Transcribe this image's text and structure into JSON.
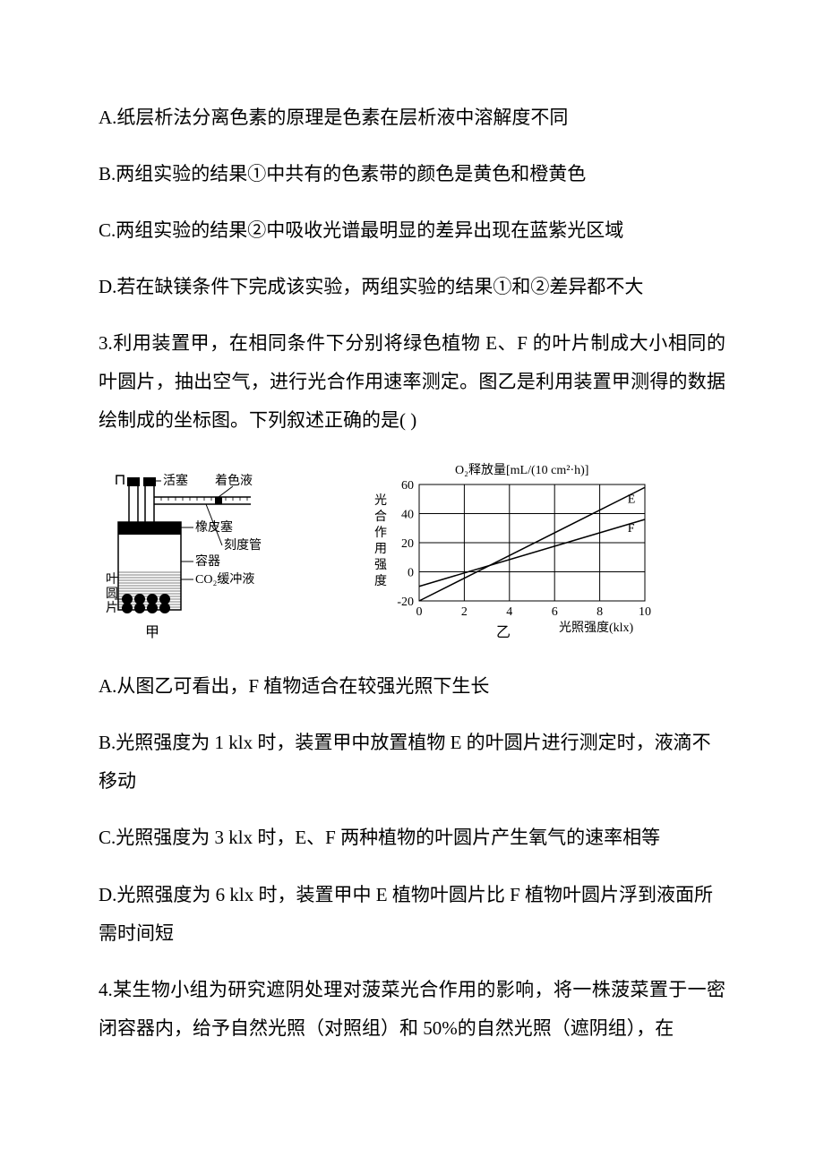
{
  "colors": {
    "text": "#000000",
    "bg": "#ffffff",
    "line": "#000000",
    "hatch": "#000000"
  },
  "q2_continuation": {
    "options": {
      "A": "A.纸层析法分离色素的原理是色素在层析液中溶解度不同",
      "B": "B.两组实验的结果①中共有的色素带的颜色是黄色和橙黄色",
      "C": "C.两组实验的结果②中吸收光谱最明显的差异出现在蓝紫光区域",
      "D": "D.若在缺镁条件下完成该实验，两组实验的结果①和②差异都不大"
    }
  },
  "q3": {
    "stem": "3.利用装置甲，在相同条件下分别将绿色植物 E、F 的叶片制成大小相同的叶圆片，抽出空气，进行光合作用速率测定。图乙是利用装置甲测得的数据绘制成的坐标图。下列叙述正确的是(   )",
    "apparatus": {
      "labels": {
        "stopper": "活塞",
        "dye": "着色液",
        "rubber": "橡皮塞",
        "tube": "刻度管",
        "container": "容器",
        "buffer": "CO₂缓冲液",
        "leafdisc_l1": "叶",
        "leafdisc_l2": "圆",
        "leafdisc_l3": "片",
        "caption": "甲"
      },
      "font_size": 14,
      "stroke": "#000000",
      "stroke_width": 1.5
    },
    "chart": {
      "type": "line",
      "title": "O₂释放量[mL/(10 cm²·h)]",
      "title_fontsize": 14,
      "ylabel_chars": [
        "光",
        "合",
        "作",
        "用",
        "强",
        "度"
      ],
      "xlabel": "光照强度(klx)",
      "label_fontsize": 14,
      "caption": "乙",
      "xlim": [
        0,
        10
      ],
      "ylim": [
        -20,
        60
      ],
      "xtick_step": 2,
      "ytick_step": 20,
      "xticks": [
        0,
        2,
        4,
        6,
        8,
        10
      ],
      "yticks": [
        -20,
        0,
        20,
        40,
        60
      ],
      "grid_color": "#000000",
      "grid_stroke_width": 1,
      "background_color": "#ffffff",
      "series": {
        "E": {
          "label": "E",
          "points": [
            [
              0,
              -20
            ],
            [
              10,
              58
            ]
          ],
          "color": "#000000",
          "stroke_width": 1.5
        },
        "F": {
          "label": "F",
          "points": [
            [
              0,
              -10
            ],
            [
              10,
              36
            ]
          ],
          "color": "#000000",
          "stroke_width": 1.5
        }
      }
    },
    "options": {
      "A": "A.从图乙可看出，F 植物适合在较强光照下生长",
      "B": "B.光照强度为 1 klx 时，装置甲中放置植物 E 的叶圆片进行测定时，液滴不移动",
      "C": "C.光照强度为 3 klx 时，E、F 两种植物的叶圆片产生氧气的速率相等",
      "D": "D.光照强度为 6 klx 时，装置甲中 E 植物叶圆片比 F 植物叶圆片浮到液面所需时间短"
    }
  },
  "q4": {
    "stem_partial": "4.某生物小组为研究遮阴处理对菠菜光合作用的影响，将一株菠菜置于一密闭容器内，给予自然光照（对照组）和 50%的自然光照（遮阴组），在"
  }
}
